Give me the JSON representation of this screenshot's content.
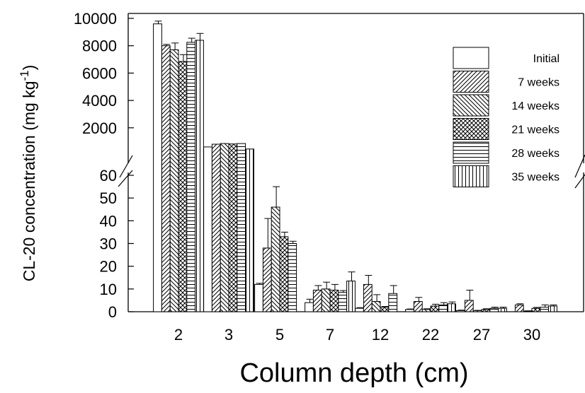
{
  "chart_data": {
    "type": "bar",
    "title": "",
    "xlabel": "Column depth (cm)",
    "ylabel": "CL-20 concentration (mg kg",
    "ylabel_sup": "-1",
    "ylabel_close": ")",
    "y_axis": "broken",
    "ylim_lower": [
      0,
      60
    ],
    "ylim_upper": [
      0,
      10000
    ],
    "upper_ticks_shown_from": 2000,
    "y_ticks_lower": [
      "0",
      "10",
      "20",
      "30",
      "40",
      "50",
      "60"
    ],
    "y_ticks_upper": [
      "2000",
      "4000",
      "6000",
      "8000",
      "10000"
    ],
    "legend_position": "right",
    "categories": [
      "2",
      "3",
      "5",
      "7",
      "12",
      "22",
      "27",
      "30"
    ],
    "series": [
      {
        "name": "Initial",
        "pattern": "blank",
        "values": [
          9600,
          600,
          12,
          4,
          1.5,
          1,
          0.5,
          0
        ],
        "errors": [
          200,
          0,
          0.5,
          1.5,
          0.3,
          0.2,
          0.2,
          0
        ]
      },
      {
        "name": "7 weeks",
        "pattern": "diag-right",
        "values": [
          8000,
          800,
          28,
          9.5,
          12,
          4.5,
          5,
          3
        ],
        "errors": [
          100,
          0,
          13,
          2,
          4,
          1.8,
          4.5,
          0.5
        ]
      },
      {
        "name": "14 weeks",
        "pattern": "diag-left",
        "values": [
          7700,
          850,
          46,
          10,
          4.5,
          1,
          0.5,
          0.3
        ],
        "errors": [
          500,
          0,
          9,
          3,
          3,
          0.3,
          0.1,
          0.1
        ]
      },
      {
        "name": "21 weeks",
        "pattern": "crosshatch",
        "values": [
          6850,
          820,
          33,
          9.5,
          2,
          2.5,
          1,
          1.5
        ],
        "errors": [
          500,
          0,
          2,
          2.5,
          0.3,
          0.8,
          0.3,
          0.4
        ]
      },
      {
        "name": "28 weeks",
        "pattern": "horizontal",
        "values": [
          8250,
          850,
          30,
          8.5,
          8,
          3,
          1.5,
          2
        ],
        "errors": [
          300,
          0,
          1,
          0.8,
          3.5,
          1,
          0.5,
          1
        ]
      },
      {
        "name": "35 weeks",
        "pattern": "vertical",
        "values": [
          8400,
          450,
          0,
          13.5,
          0,
          3.5,
          1.5,
          2.5
        ],
        "errors": [
          500,
          0,
          0,
          4,
          0,
          0.8,
          0.5,
          0.5
        ]
      }
    ]
  }
}
